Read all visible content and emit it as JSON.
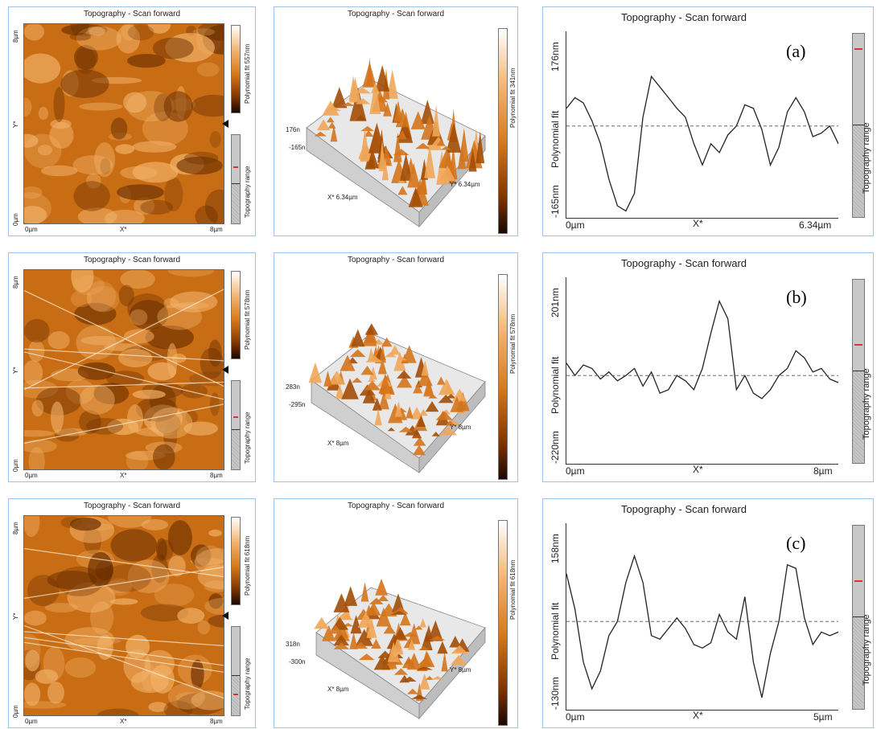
{
  "rows": [
    {
      "id": "a",
      "map2d": {
        "title": "Topography - Scan forward",
        "y_top": "8µm",
        "y_mid": "Y*",
        "y_bot": "0µm",
        "x_left": "0µm",
        "x_mid": "X*",
        "x_right": "8µm",
        "cbar_label": "Polynomial fit 557nm",
        "range_label": "Topography range",
        "range_mark": 0.35
      },
      "map3d": {
        "title": "Topography - Scan forward",
        "z_max": "176n",
        "z_min": "-165n",
        "x_axis": "X* 6.34µm",
        "y_axis": "Y* 6.34µm",
        "cbar_label": "Polynomial fit 341nm"
      },
      "profile": {
        "title": "Topography - Scan forward",
        "y_max": "176nm",
        "y_mid": "Polynomial fit",
        "y_min": "-165nm",
        "x_left": "0µm",
        "x_mid": "X*",
        "x_right": "6.34µm",
        "caption": "(a)",
        "range_label": "Topography range",
        "range_mark": 0.08,
        "trace": [
          0.6,
          0.66,
          0.63,
          0.53,
          0.4,
          0.2,
          0.05,
          0.02,
          0.12,
          0.55,
          0.78,
          0.72,
          0.66,
          0.6,
          0.55,
          0.4,
          0.28,
          0.4,
          0.35,
          0.45,
          0.5,
          0.62,
          0.6,
          0.48,
          0.28,
          0.38,
          0.58,
          0.66,
          0.58,
          0.44,
          0.46,
          0.5,
          0.4
        ],
        "dashed": 0.5
      }
    },
    {
      "id": "b",
      "map2d": {
        "title": "Topography - Scan forward",
        "y_top": "8µm",
        "y_mid": "Y*",
        "y_bot": "0µm",
        "x_left": "0µm",
        "x_mid": "X*",
        "x_right": "8µm",
        "cbar_label": "Polynomial fit 578nm",
        "range_label": "Topography range",
        "range_mark": 0.4
      },
      "map3d": {
        "title": "Topography - Scan forward",
        "z_max": "283n",
        "z_min": "-295n",
        "x_axis": "X* 8µm",
        "y_axis": "Y* 8µm",
        "cbar_label": "Polynomial fit 578nm"
      },
      "profile": {
        "title": "Topography - Scan forward",
        "y_max": "201nm",
        "y_mid": "Polynomial fit",
        "y_min": "-220nm",
        "x_left": "0µm",
        "x_mid": "X*",
        "x_right": "8µm",
        "caption": "(b)",
        "range_label": "Topography range",
        "range_mark": 0.35,
        "trace": [
          0.55,
          0.48,
          0.54,
          0.52,
          0.46,
          0.5,
          0.45,
          0.48,
          0.52,
          0.42,
          0.5,
          0.38,
          0.4,
          0.48,
          0.45,
          0.4,
          0.52,
          0.72,
          0.9,
          0.8,
          0.4,
          0.48,
          0.38,
          0.35,
          0.4,
          0.48,
          0.52,
          0.62,
          0.58,
          0.5,
          0.52,
          0.46,
          0.44
        ],
        "dashed": 0.48
      }
    },
    {
      "id": "c",
      "map2d": {
        "title": "Topography - Scan forward",
        "y_top": "8µm",
        "y_mid": "Y*",
        "y_bot": "0µm",
        "x_left": "0µm",
        "x_mid": "X*",
        "x_right": "8µm",
        "cbar_label": "Polynomial fit 618nm",
        "range_label": "Topography range",
        "range_mark": 0.75
      },
      "map3d": {
        "title": "Topography - Scan forward",
        "z_max": "318n",
        "z_min": "-300n",
        "x_axis": "X* 8µm",
        "y_axis": "Y* 8µm",
        "cbar_label": "Polynomial fit 618nm"
      },
      "profile": {
        "title": "Topography - Scan forward",
        "y_max": "158nm",
        "y_mid": "Polynomial fit",
        "y_min": "-130nm",
        "x_left": "0µm",
        "x_mid": "X*",
        "x_right": "5µm",
        "caption": "(c)",
        "range_label": "Topography range",
        "range_mark": 0.3,
        "trace": [
          0.75,
          0.55,
          0.25,
          0.1,
          0.2,
          0.4,
          0.48,
          0.7,
          0.85,
          0.7,
          0.4,
          0.38,
          0.44,
          0.5,
          0.44,
          0.35,
          0.33,
          0.36,
          0.52,
          0.42,
          0.38,
          0.62,
          0.25,
          0.05,
          0.3,
          0.48,
          0.8,
          0.78,
          0.5,
          0.35,
          0.42,
          0.4,
          0.42
        ],
        "dashed": 0.48
      }
    }
  ]
}
